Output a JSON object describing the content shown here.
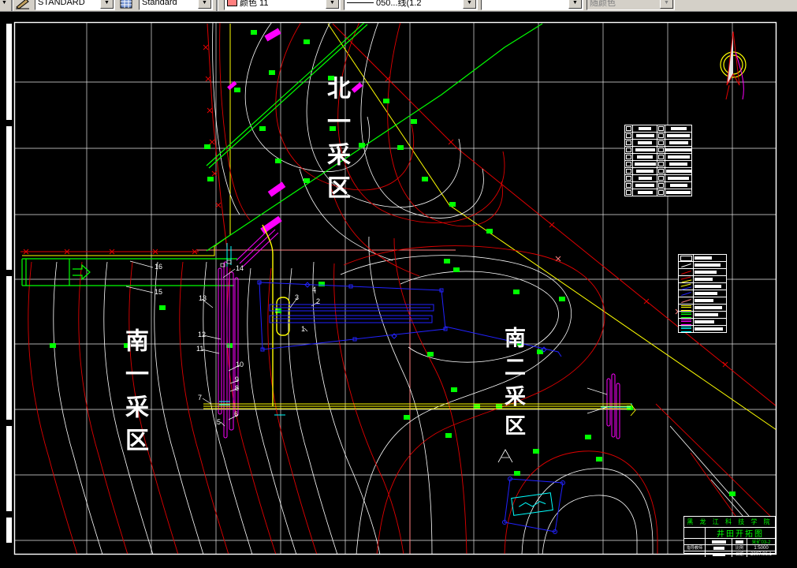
{
  "toolbar": {
    "dropdown_glyph": "▼",
    "dim_style": "STANDARD",
    "text_style": "Standard",
    "color_value": "颜色 11",
    "linetype_value": "050...线(1.2",
    "empty_value": "",
    "lineweight_value": "随颜色"
  },
  "drawing": {
    "area_labels": {
      "north1": "北一采区",
      "south1": "南一采区",
      "south2": "南二采区"
    },
    "callouts": [
      "16",
      "15",
      "14",
      "13",
      "12",
      "11",
      "10",
      "9",
      "8",
      "7",
      "6",
      "5",
      "4",
      "3",
      "2",
      "1"
    ],
    "title_block": {
      "school": "黑 龙 江 科 技 学 院",
      "title": "井田开拓图",
      "class": "采矿03-2",
      "advisor_label": "指导教师",
      "scale_label": "比例",
      "scale": "1:5000",
      "date_label": "日期",
      "date": "2007.06.1"
    },
    "legend_upper": {
      "rows": 10
    },
    "legend_lower": {
      "rows": 11,
      "symbols": [
        "white-rect",
        "white-line",
        "red-line",
        "red-yellow-line",
        "yellow-blue-line",
        "blue-line",
        "salmon-line",
        "yellow-rails",
        "green-rails",
        "magenta-rails",
        "cyan-rails"
      ]
    },
    "palette": {
      "contour_red": "#e00000",
      "contour_white": "#ffffff",
      "survey_green": "#00ff00",
      "shaft_yellow": "#ffff00",
      "shaft_magenta": "#ff00ff",
      "workings_blue": "#2222ff",
      "aux_cyan": "#00ffff",
      "axis_salmon": "#ff8080",
      "toolbar_swatch": "#ff7f7f"
    }
  }
}
